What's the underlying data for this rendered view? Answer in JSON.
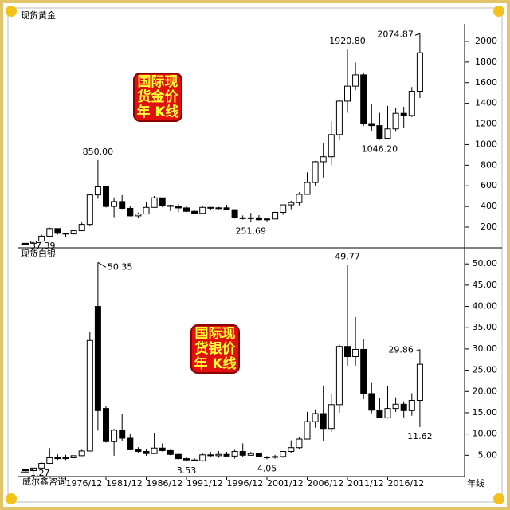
{
  "chart_data": [
    {
      "type": "candlestick",
      "title": "现货黄金",
      "badge": [
        "国际现",
        "货金价",
        "年 K线"
      ],
      "open": [
        37.39,
        43,
        64,
        112,
        186,
        140,
        134,
        165,
        226,
        512,
        590,
        400,
        448,
        382,
        309,
        327,
        391,
        484,
        410,
        401,
        386,
        353,
        333,
        391,
        383,
        387,
        369,
        290,
        288,
        290,
        272,
        279,
        343,
        416,
        438,
        517,
        632,
        834,
        882,
        1097,
        1421,
        1566,
        1676,
        1204,
        1184,
        1061,
        1152,
        1303,
        1282,
        1517
      ],
      "high": [
        44,
        70,
        127,
        195,
        186,
        141,
        168,
        245,
        525,
        850,
        600,
        488,
        510,
        406,
        341,
        442,
        502,
        485,
        417,
        424,
        403,
        360,
        406,
        397,
        396,
        415,
        370,
        313,
        338,
        316,
        293,
        349,
        417,
        456,
        538,
        730,
        842,
        1011,
        1226,
        1431,
        1920.8,
        1796,
        1697,
        1392,
        1308,
        1375,
        1357,
        1366,
        1557,
        2074.87
      ],
      "low": [
        37.39,
        43,
        64,
        112,
        128,
        103,
        130,
        165,
        216,
        474,
        390,
        296,
        375,
        303,
        284,
        326,
        390,
        393,
        356,
        345,
        344,
        330,
        326,
        370,
        372,
        367,
        283,
        273,
        251.69,
        264,
        256,
        278,
        320,
        373,
        411,
        520,
        603,
        681,
        802,
        1044,
        1308,
        1527,
        1180,
        1131,
        1046.2,
        1061,
        1124,
        1160,
        1266,
        1451
      ],
      "close": [
        43,
        64,
        112,
        186,
        140,
        134,
        165,
        226,
        512,
        590,
        400,
        448,
        382,
        309,
        327,
        391,
        484,
        410,
        401,
        386,
        353,
        333,
        391,
        383,
        387,
        369,
        290,
        288,
        290,
        272,
        279,
        343,
        416,
        438,
        517,
        632,
        834,
        882,
        1097,
        1421,
        1566,
        1676,
        1204,
        1184,
        1061,
        1152,
        1303,
        1282,
        1517,
        1890
      ],
      "ylim": [
        7,
        2131
      ],
      "yticks": [
        200,
        400,
        600,
        800,
        1000,
        1200,
        1400,
        1600,
        1800,
        2000
      ],
      "annotations": [
        {
          "value": 37.39,
          "label": "37.39"
        },
        {
          "value": 850,
          "label": "850.00"
        },
        {
          "value": 251.69,
          "label": "251.69"
        },
        {
          "value": 1920.8,
          "label": "1920.80"
        },
        {
          "value": 2074.87,
          "label": "2074.87"
        },
        {
          "value": 1046.2,
          "label": "1046.20"
        }
      ]
    },
    {
      "type": "candlestick",
      "title": "现货白银",
      "badge": [
        "国际现",
        "货银价",
        "年 K线"
      ],
      "categories": [
        null,
        null,
        null,
        null,
        null,
        "1976/12",
        null,
        null,
        null,
        null,
        "1981/12",
        null,
        null,
        null,
        null,
        "1986/12",
        null,
        null,
        null,
        null,
        "1991/12",
        null,
        null,
        null,
        null,
        "1996/12",
        null,
        null,
        null,
        null,
        "2001/12",
        null,
        null,
        null,
        null,
        "2006/12",
        null,
        null,
        null,
        null,
        "2011/12",
        null,
        null,
        null,
        null,
        "2016/12",
        null,
        null,
        null,
        null
      ],
      "open": [
        1.6,
        1.4,
        2.0,
        3.1,
        4.4,
        4.2,
        4.4,
        4.9,
        6.0,
        40,
        16,
        8.2,
        10.9,
        9.0,
        6.3,
        5.9,
        5.4,
        6.7,
        6.1,
        5.2,
        4.2,
        3.9,
        3.7,
        5.1,
        4.9,
        5.2,
        4.8,
        5.9,
        5.0,
        5.4,
        4.6,
        4.6,
        4.7,
        5.9,
        6.8,
        8.8,
        12.9,
        14.8,
        11.3,
        16.9,
        30.6,
        28.2,
        29.9,
        19.5,
        15.6,
        13.8,
        16.0,
        17.0,
        15.5,
        17.9
      ],
      "high": [
        1.75,
        2.0,
        3.3,
        6.7,
        5.2,
        5.1,
        4.9,
        6.3,
        34,
        50.35,
        16.5,
        11.2,
        14.7,
        10.1,
        6.9,
        6.4,
        10.3,
        7.8,
        6.3,
        5.4,
        4.6,
        4.3,
        5.4,
        5.8,
        6.0,
        5.8,
        6.3,
        7.8,
        5.8,
        5.5,
        4.8,
        5.1,
        6.0,
        8.5,
        9.2,
        15.2,
        15.8,
        21.4,
        19.5,
        31,
        49.77,
        37.5,
        32.4,
        22.2,
        18.5,
        21.2,
        18.6,
        17.7,
        19.6,
        29.86
      ],
      "low": [
        1.27,
        1.4,
        2.0,
        3.1,
        3.9,
        3.9,
        4.3,
        4.8,
        5.9,
        10.8,
        8,
        4.9,
        8.4,
        6.2,
        5.5,
        4.9,
        5.4,
        5.9,
        5.0,
        3.95,
        3.53,
        3.6,
        3.5,
        4.6,
        4.4,
        4.7,
        4.2,
        4.6,
        4.9,
        4.6,
        4.05,
        4.2,
        4.4,
        5.5,
        6.4,
        8.8,
        11.5,
        8.4,
        10.5,
        15.0,
        26.1,
        26.1,
        18.2,
        14.9,
        13.7,
        13.6,
        15.2,
        13.9,
        14.3,
        11.62
      ],
      "close": [
        1.4,
        2.0,
        3.1,
        4.4,
        4.2,
        4.4,
        4.9,
        6.0,
        32,
        15.5,
        8.2,
        10.9,
        9.0,
        6.3,
        5.9,
        5.4,
        6.7,
        6.1,
        5.2,
        4.2,
        3.9,
        3.7,
        5.1,
        4.9,
        5.2,
        4.8,
        5.9,
        5.0,
        5.4,
        4.6,
        4.6,
        4.7,
        5.9,
        6.8,
        8.8,
        12.9,
        14.8,
        11.3,
        16.9,
        30.6,
        28.2,
        29.9,
        19.5,
        15.6,
        13.8,
        16.0,
        17.0,
        15.5,
        17.9,
        26.4
      ],
      "ylim": [
        0,
        53.6
      ],
      "yticks": [
        {
          "value": 5,
          "label": "5.00"
        },
        {
          "value": 10,
          "label": "10.00"
        },
        {
          "value": 15,
          "label": "15.00"
        },
        {
          "value": 20,
          "label": "20.00"
        },
        {
          "value": 25,
          "label": "25.00"
        },
        {
          "value": 30,
          "label": "30.00"
        },
        {
          "value": 35,
          "label": "35.00"
        },
        {
          "value": 40,
          "label": "40.00"
        },
        {
          "value": 45,
          "label": "45.00"
        },
        {
          "value": 50,
          "label": "50.00"
        }
      ],
      "annotations": [
        {
          "value": 1.27,
          "label": "1.27"
        },
        {
          "value": 50.35,
          "label": "50.35"
        },
        {
          "value": 3.53,
          "label": "3.53"
        },
        {
          "value": 49.77,
          "label": "49.77"
        },
        {
          "value": 4.05,
          "label": "4.05"
        },
        {
          "value": 29.86,
          "label": "29.86"
        },
        {
          "value": 11.62,
          "label": "11.62"
        }
      ]
    }
  ],
  "footer": {
    "watermark": "威尔鑫咨询",
    "period": "年线"
  }
}
